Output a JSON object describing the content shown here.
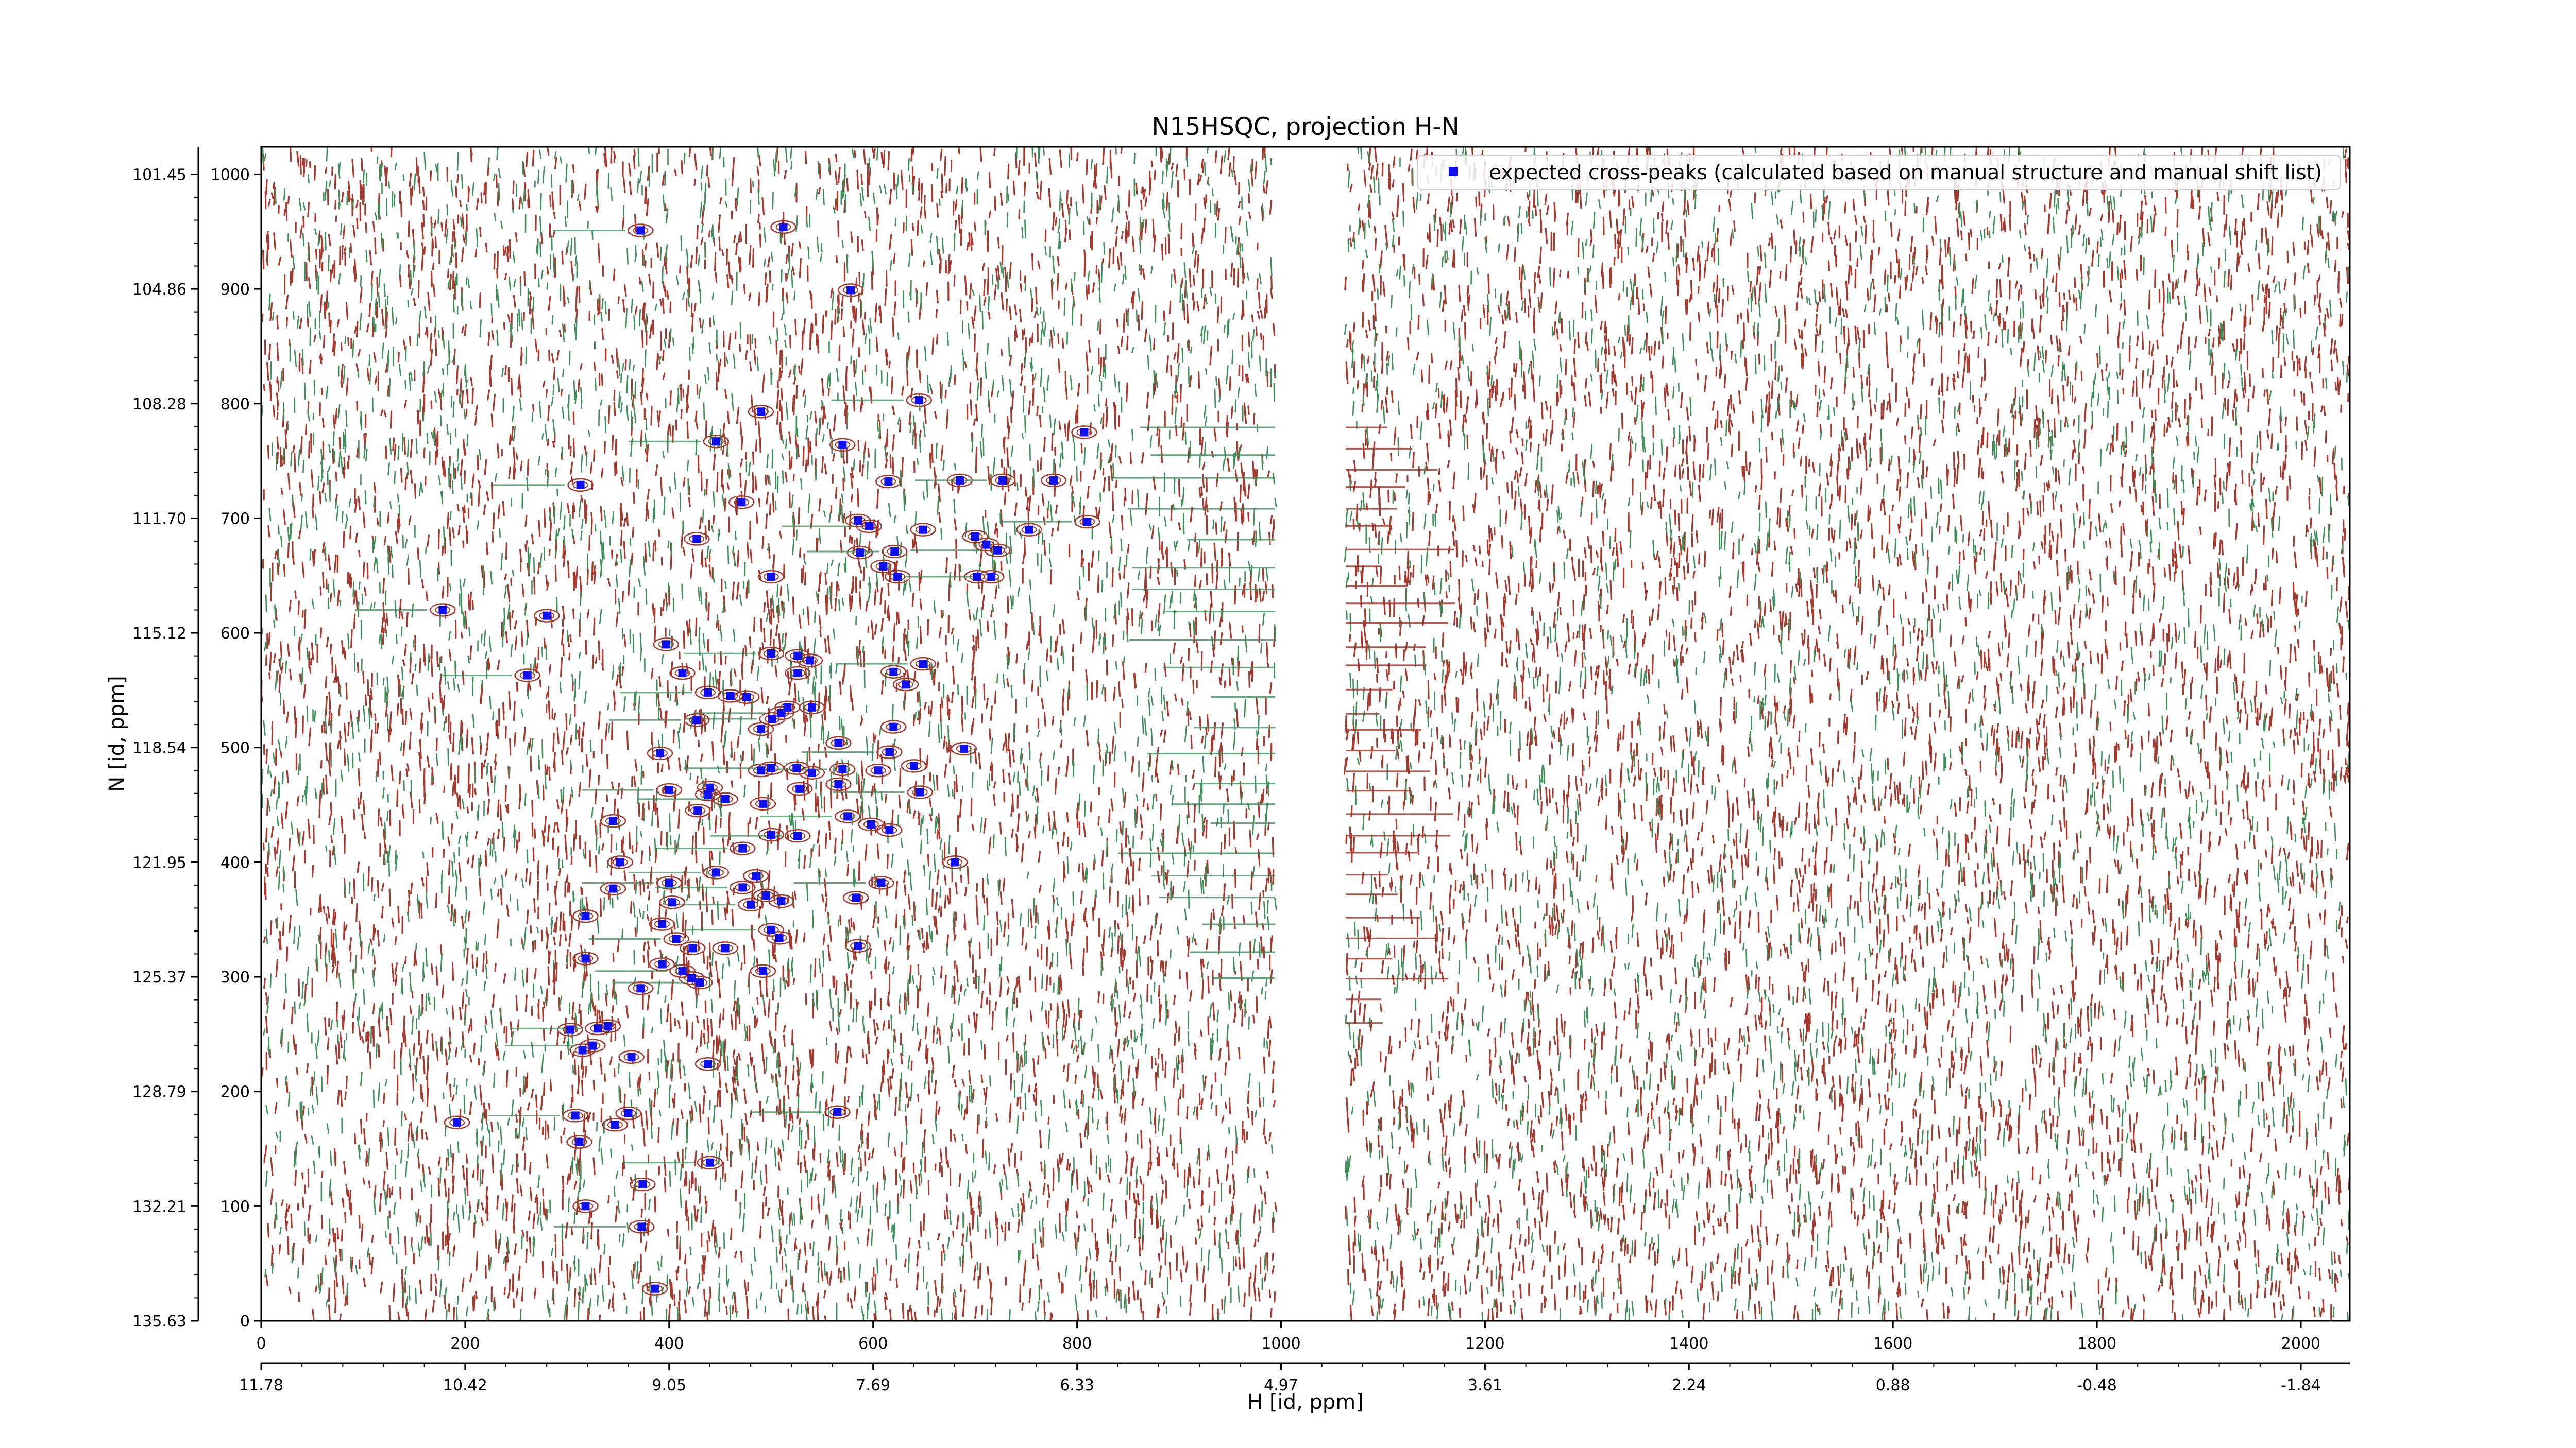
{
  "chart_data": {
    "type": "scatter",
    "title": "N15HSQC, projection H-N",
    "xlabel": "H [id, ppm]",
    "ylabel": "N [id, ppm]",
    "xlim": [
      0,
      2048
    ],
    "ylim": [
      0,
      1024
    ],
    "x_ticks": [
      0,
      200,
      400,
      600,
      800,
      1000,
      1200,
      1400,
      1600,
      1800,
      2000
    ],
    "y_ticks": [
      0,
      100,
      200,
      300,
      400,
      500,
      600,
      700,
      800,
      900,
      1000
    ],
    "x_ppm_labels": [
      "11.78",
      "10.42",
      "9.05",
      "7.69",
      "6.33",
      "4.97",
      "3.61",
      "2.24",
      "0.88",
      "-0.48",
      "-1.84"
    ],
    "y_ppm_labels": [
      "135.63",
      "132.21",
      "128.79",
      "125.37",
      "121.95",
      "118.54",
      "115.12",
      "111.70",
      "108.28",
      "104.86",
      "101.45"
    ],
    "legend": {
      "entries": [
        "expected cross-peaks (calculated based on manual structure and manual shift list)"
      ],
      "placement": "top-right"
    },
    "colors": {
      "positive_contour": "#a33b30",
      "negative_contour": "#3f8f5a",
      "marker": "#1010ee"
    },
    "series": [
      {
        "name": "expected cross-peaks (calculated based on manual structure and manual shift list)",
        "points": [
          [
            372,
            951
          ],
          [
            512,
            954
          ],
          [
            578,
            899
          ],
          [
            645,
            803
          ],
          [
            490,
            793
          ],
          [
            807,
            775
          ],
          [
            446,
            767
          ],
          [
            570,
            764
          ],
          [
            685,
            733
          ],
          [
            727,
            733
          ],
          [
            777,
            733
          ],
          [
            615,
            732
          ],
          [
            313,
            729
          ],
          [
            471,
            714
          ],
          [
            585,
            698
          ],
          [
            596,
            693
          ],
          [
            649,
            690
          ],
          [
            753,
            690
          ],
          [
            810,
            697
          ],
          [
            700,
            684
          ],
          [
            711,
            677
          ],
          [
            722,
            672
          ],
          [
            427,
            682
          ],
          [
            587,
            670
          ],
          [
            621,
            671
          ],
          [
            610,
            658
          ],
          [
            702,
            649
          ],
          [
            716,
            649
          ],
          [
            624,
            649
          ],
          [
            500,
            649
          ],
          [
            178,
            620
          ],
          [
            280,
            615
          ],
          [
            397,
            590
          ],
          [
            500,
            582
          ],
          [
            526,
            580
          ],
          [
            538,
            576
          ],
          [
            261,
            563
          ],
          [
            413,
            565
          ],
          [
            526,
            565
          ],
          [
            649,
            573
          ],
          [
            620,
            566
          ],
          [
            632,
            555
          ],
          [
            438,
            548
          ],
          [
            460,
            545
          ],
          [
            476,
            544
          ],
          [
            501,
            525
          ],
          [
            516,
            535
          ],
          [
            540,
            535
          ],
          [
            510,
            530
          ],
          [
            490,
            516
          ],
          [
            620,
            518
          ],
          [
            427,
            524
          ],
          [
            391,
            495
          ],
          [
            566,
            504
          ],
          [
            616,
            496
          ],
          [
            689,
            499
          ],
          [
            490,
            480
          ],
          [
            500,
            482
          ],
          [
            525,
            482
          ],
          [
            540,
            478
          ],
          [
            570,
            481
          ],
          [
            605,
            480
          ],
          [
            640,
            484
          ],
          [
            400,
            463
          ],
          [
            438,
            459
          ],
          [
            440,
            465
          ],
          [
            455,
            455
          ],
          [
            528,
            464
          ],
          [
            566,
            468
          ],
          [
            646,
            461
          ],
          [
            492,
            451
          ],
          [
            428,
            445
          ],
          [
            575,
            440
          ],
          [
            598,
            433
          ],
          [
            345,
            436
          ],
          [
            472,
            412
          ],
          [
            500,
            424
          ],
          [
            616,
            428
          ],
          [
            526,
            423
          ],
          [
            352,
            400
          ],
          [
            680,
            400
          ],
          [
            446,
            391
          ],
          [
            485,
            388
          ],
          [
            495,
            371
          ],
          [
            480,
            363
          ],
          [
            510,
            366
          ],
          [
            583,
            369
          ],
          [
            400,
            382
          ],
          [
            345,
            377
          ],
          [
            318,
            353
          ],
          [
            472,
            378
          ],
          [
            403,
            365
          ],
          [
            393,
            346
          ],
          [
            407,
            333
          ],
          [
            423,
            325
          ],
          [
            455,
            325
          ],
          [
            500,
            341
          ],
          [
            508,
            334
          ],
          [
            585,
            327
          ],
          [
            608,
            382
          ],
          [
            318,
            316
          ],
          [
            393,
            311
          ],
          [
            413,
            305
          ],
          [
            492,
            305
          ],
          [
            422,
            299
          ],
          [
            430,
            295
          ],
          [
            372,
            290
          ],
          [
            303,
            254
          ],
          [
            330,
            255
          ],
          [
            340,
            257
          ],
          [
            315,
            236
          ],
          [
            325,
            240
          ],
          [
            363,
            230
          ],
          [
            438,
            224
          ],
          [
            308,
            179
          ],
          [
            347,
            171
          ],
          [
            360,
            181
          ],
          [
            565,
            182
          ],
          [
            192,
            173
          ],
          [
            312,
            156
          ],
          [
            440,
            138
          ],
          [
            318,
            100
          ],
          [
            374,
            119
          ],
          [
            373,
            82
          ],
          [
            386,
            28
          ]
        ]
      }
    ]
  }
}
